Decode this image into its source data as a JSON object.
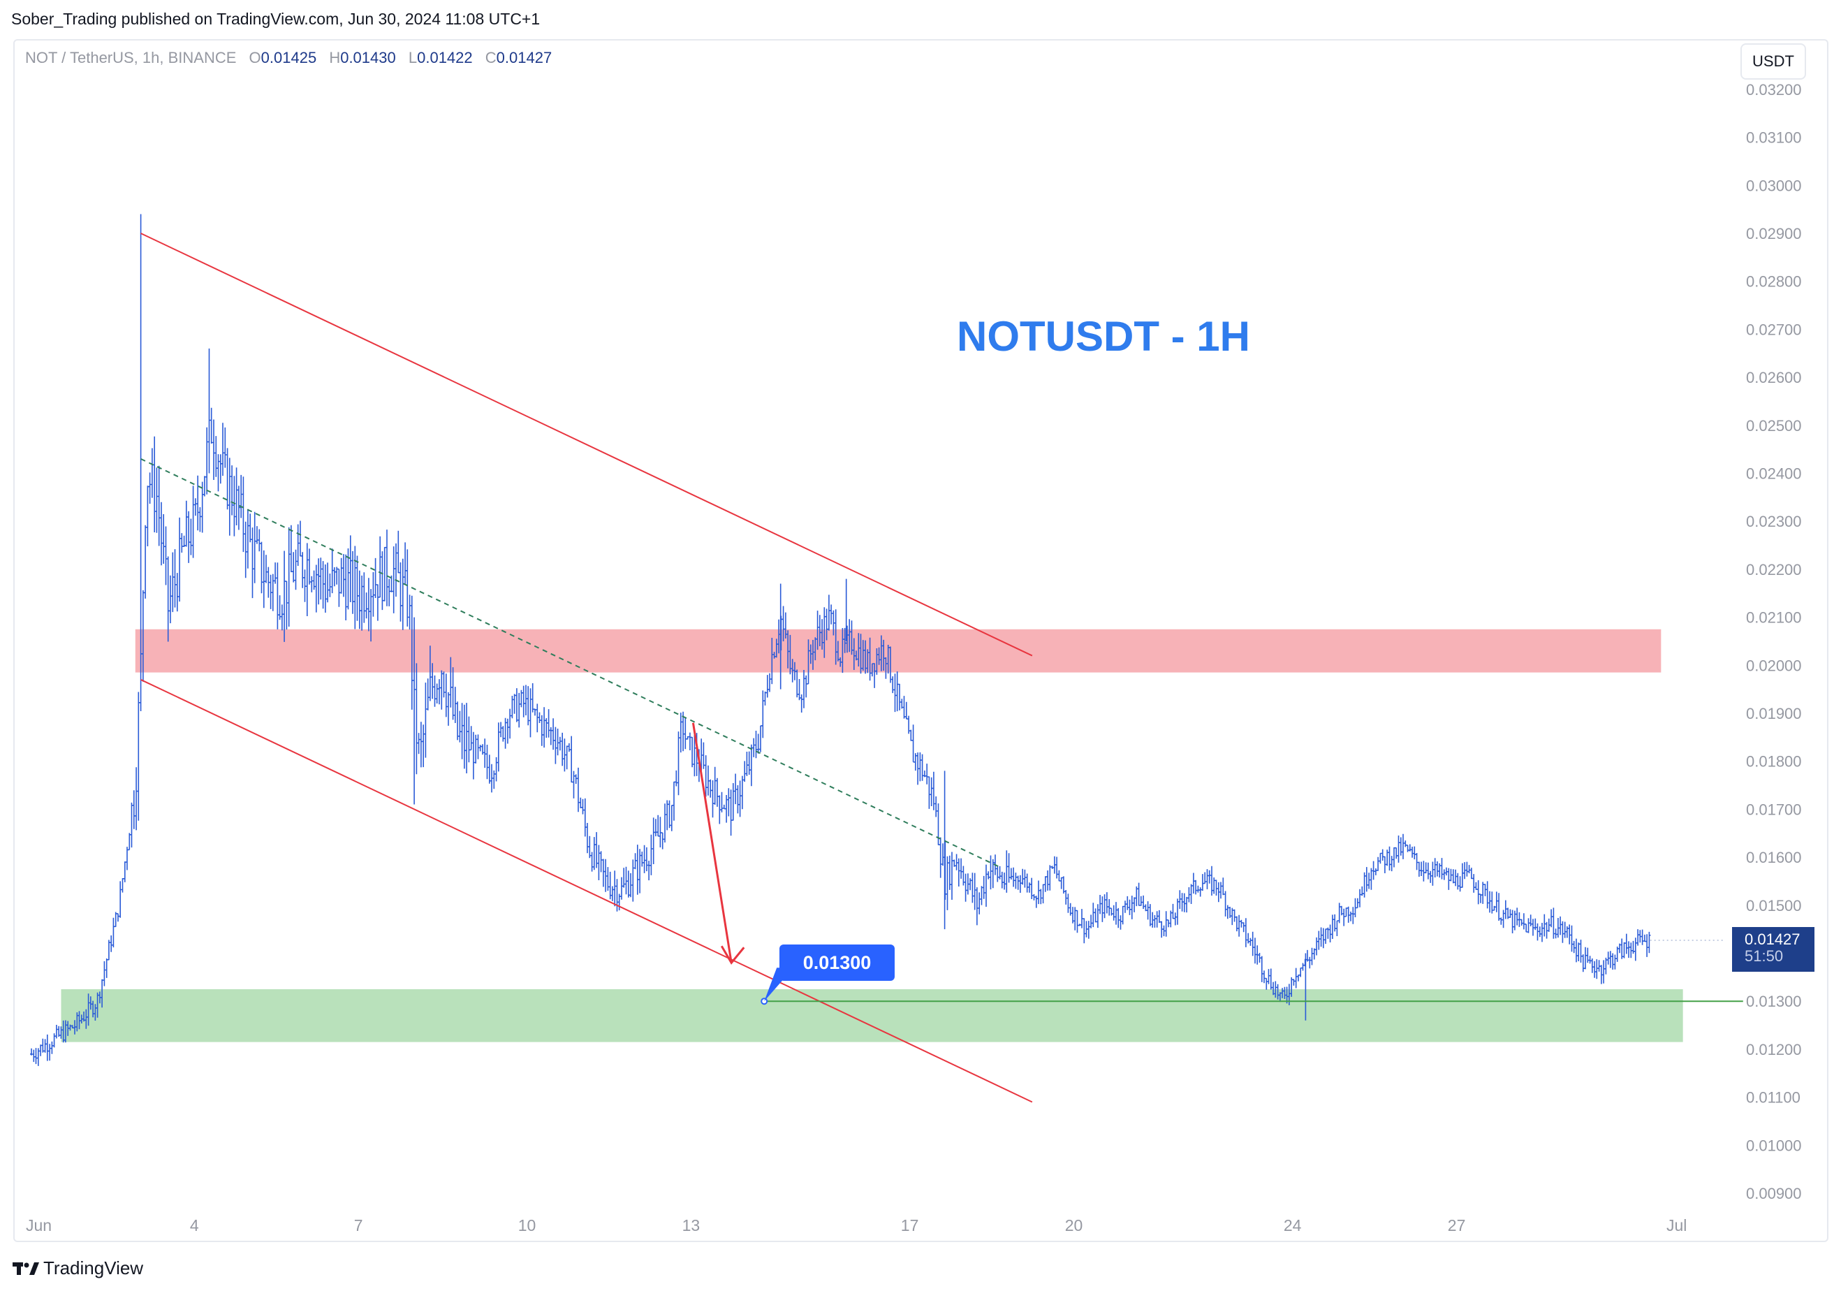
{
  "published_line": "Sober_Trading published on TradingView.com, Jun 30, 2024 11:08 UTC+1",
  "legend": {
    "symbol": "NOT / TetherUS, 1h, BINANCE",
    "o_label": "O",
    "o": "0.01425",
    "h_label": "H",
    "h": "0.01430",
    "l_label": "L",
    "l": "0.01422",
    "c_label": "C",
    "c": "0.01427"
  },
  "currency_button": "USDT",
  "chart_data": {
    "type": "line",
    "title": "NOTUSDT - 1H",
    "y_ticks": [
      "0.03200",
      "0.03100",
      "0.03000",
      "0.02900",
      "0.02800",
      "0.02700",
      "0.02600",
      "0.02500",
      "0.02400",
      "0.02300",
      "0.02200",
      "0.02100",
      "0.02000",
      "0.01900",
      "0.01800",
      "0.01700",
      "0.01600",
      "0.01500",
      "0.01400",
      "0.01300",
      "0.01200",
      "0.01100",
      "0.01000",
      "0.00900"
    ],
    "ylim": [
      0.0088,
      0.0324
    ],
    "x_ticks": [
      {
        "label": "Jun",
        "day": 1
      },
      {
        "label": "4",
        "day": 4
      },
      {
        "label": "7",
        "day": 7
      },
      {
        "label": "10",
        "day": 10
      },
      {
        "label": "13",
        "day": 13
      },
      {
        "label": "17",
        "day": 17
      },
      {
        "label": "20",
        "day": 20
      },
      {
        "label": "24",
        "day": 24
      },
      {
        "label": "27",
        "day": 27
      },
      {
        "label": "Jul",
        "day": 31
      }
    ],
    "xlim_days": [
      1,
      31.8
    ],
    "series": [
      {
        "x": [
          1.0,
          1.4,
          1.8,
          2.2,
          2.6,
          2.9,
          3.0,
          3.1,
          3.3,
          3.5,
          3.8,
          4.0,
          4.3,
          4.5,
          4.7,
          5.0,
          5.3,
          5.6,
          5.8,
          6.1,
          6.4,
          6.7,
          7.0,
          7.3,
          7.6,
          7.9,
          8.0,
          8.1,
          8.3,
          8.5,
          8.8,
          9.1,
          9.4,
          9.7,
          10.0,
          10.3,
          10.6,
          10.9,
          11.2,
          11.5,
          11.8,
          12.1,
          12.4,
          12.7,
          12.9,
          13.0,
          13.2,
          13.4,
          13.6,
          13.8,
          14.1,
          14.3,
          14.5,
          14.7,
          14.9,
          15.1,
          15.3,
          15.6,
          15.8,
          16.0,
          16.3,
          16.6,
          16.9,
          17.1,
          17.3,
          17.5,
          17.7,
          17.9,
          18.1,
          18.3,
          18.5,
          18.8,
          19.1,
          19.4,
          19.7,
          20.0,
          20.3,
          20.6,
          20.9,
          21.2,
          21.5,
          21.8,
          22.1,
          22.4,
          22.7,
          23.0,
          23.3,
          23.6,
          23.9,
          24.1,
          24.3,
          24.6,
          24.9,
          25.2,
          25.5,
          25.8,
          26.1,
          26.4,
          26.7,
          27.0,
          27.3,
          27.6,
          27.9,
          28.2,
          28.5,
          28.8,
          29.1,
          29.4,
          29.7,
          30.0,
          30.3,
          30.6
        ],
        "close": [
          0.0119,
          0.0122,
          0.0125,
          0.013,
          0.015,
          0.0175,
          0.02,
          0.024,
          0.0235,
          0.0212,
          0.0225,
          0.023,
          0.025,
          0.024,
          0.0235,
          0.0225,
          0.0218,
          0.0215,
          0.022,
          0.0222,
          0.0216,
          0.0218,
          0.0215,
          0.0218,
          0.022,
          0.0213,
          0.019,
          0.018,
          0.0195,
          0.02,
          0.0185,
          0.0182,
          0.0178,
          0.019,
          0.0192,
          0.0188,
          0.0185,
          0.0178,
          0.0162,
          0.0155,
          0.0153,
          0.0158,
          0.0163,
          0.017,
          0.0188,
          0.0183,
          0.018,
          0.0175,
          0.0172,
          0.017,
          0.0178,
          0.0185,
          0.02,
          0.021,
          0.0198,
          0.0195,
          0.0205,
          0.021,
          0.0202,
          0.0205,
          0.02,
          0.0204,
          0.019,
          0.0182,
          0.0178,
          0.0172,
          0.0155,
          0.016,
          0.0155,
          0.015,
          0.0158,
          0.0155,
          0.0156,
          0.0152,
          0.0158,
          0.0149,
          0.0145,
          0.015,
          0.0148,
          0.0152,
          0.0147,
          0.0146,
          0.0152,
          0.0155,
          0.0154,
          0.0147,
          0.0142,
          0.0135,
          0.013,
          0.0136,
          0.0138,
          0.0143,
          0.0148,
          0.015,
          0.0158,
          0.016,
          0.0162,
          0.0158,
          0.0157,
          0.0155,
          0.0156,
          0.0152,
          0.0148,
          0.0146,
          0.0145,
          0.0146,
          0.0144,
          0.0138,
          0.0137,
          0.014,
          0.0142,
          0.01427
        ]
      }
    ],
    "channel_upper": {
      "from": {
        "day": 3.0,
        "price": 0.029
      },
      "to": {
        "day": 19.3,
        "price": 0.0202
      }
    },
    "channel_lower": {
      "from": {
        "day": 3.0,
        "price": 0.0197
      },
      "to": {
        "day": 19.3,
        "price": 0.0109
      }
    },
    "midline": {
      "from": {
        "day": 3.0,
        "price": 0.0243
      },
      "to": {
        "day": 18.7,
        "price": 0.0158
      }
    },
    "resistance_zone": {
      "top": 0.02075,
      "bottom": 0.01985,
      "from_day": 2.9,
      "to_day": 30.8
    },
    "support_zone": {
      "top": 0.01325,
      "bottom": 0.01215,
      "from_day": 1.9,
      "to_day": 31.2
    },
    "support_line": {
      "price": 0.013,
      "from_day": 14.4,
      "to_day": 32.3
    },
    "arrow": {
      "from": {
        "day": 13.1,
        "price": 0.0188
      },
      "to": {
        "day": 13.8,
        "price": 0.0138
      }
    },
    "callout_value": "0.01300",
    "last_price": "0.01427",
    "countdown": "51:50"
  },
  "colors": {
    "candles": "#2a5bd7",
    "channel": "#e8353f",
    "midline": "#2e7d5b",
    "resistance": "#f6a4aa",
    "support": "#b5dfb7",
    "support_line": "#43a047",
    "title": "#2f7ced",
    "price_label": "#1e3f8a"
  },
  "footer_logo": "TradingView"
}
